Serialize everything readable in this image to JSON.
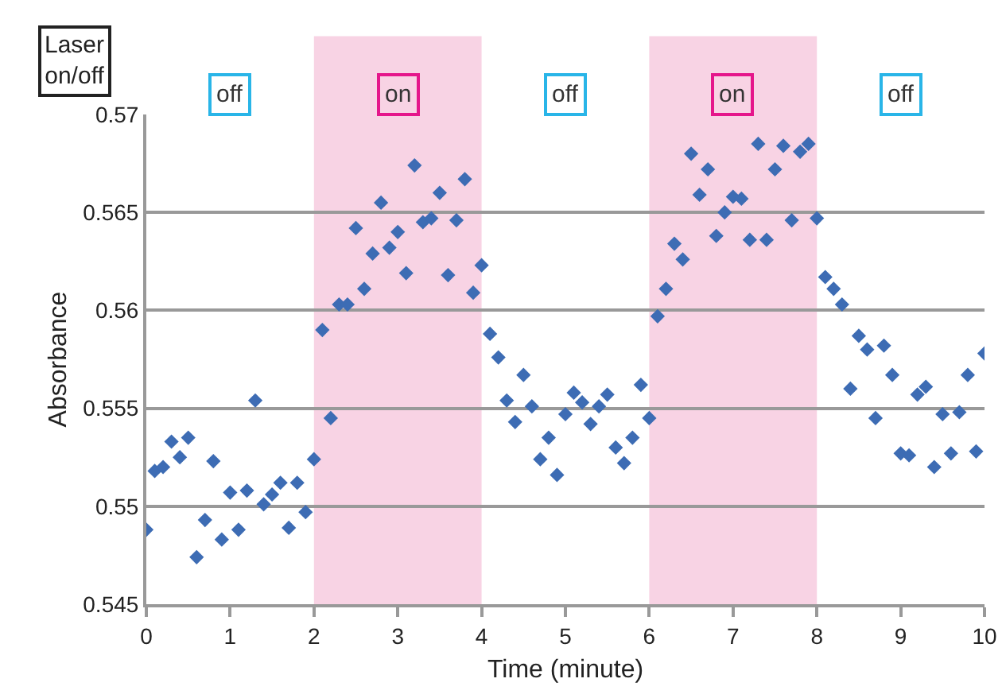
{
  "chart_data": {
    "type": "scatter",
    "xlabel": "Time (minute)",
    "ylabel": "Absorbance",
    "x": [
      0,
      0.1,
      0.2,
      0.3,
      0.4,
      0.5,
      0.6,
      0.7,
      0.8,
      0.9,
      1,
      1.1,
      1.2,
      1.3,
      1.4,
      1.5,
      1.6,
      1.7,
      1.8,
      1.9,
      2,
      2.1,
      2.2,
      2.3,
      2.4,
      2.5,
      2.6,
      2.7,
      2.8,
      2.9,
      3,
      3.1,
      3.2,
      3.3,
      3.4,
      3.5,
      3.6,
      3.7,
      3.8,
      3.9,
      4,
      4.1,
      4.2,
      4.3,
      4.4,
      4.5,
      4.6,
      4.7,
      4.8,
      4.9,
      5,
      5.1,
      5.2,
      5.3,
      5.4,
      5.5,
      5.6,
      5.7,
      5.8,
      5.9,
      6,
      6.1,
      6.2,
      6.3,
      6.4,
      6.5,
      6.6,
      6.7,
      6.8,
      6.9,
      7,
      7.1,
      7.2,
      7.3,
      7.4,
      7.5,
      7.6,
      7.7,
      7.8,
      7.9,
      8,
      8.1,
      8.2,
      8.3,
      8.4,
      8.5,
      8.6,
      8.7,
      8.8,
      8.9,
      9,
      9.1,
      9.2,
      9.3,
      9.4,
      9.5,
      9.6,
      9.7,
      9.8,
      9.9,
      10
    ],
    "series": [
      {
        "color": "#3d6cb4",
        "values": [
          0.5488,
          0.5518,
          0.552,
          0.5533,
          0.5525,
          0.5535,
          0.5474,
          0.5493,
          0.5523,
          0.5483,
          0.5507,
          0.5488,
          0.5508,
          0.5554,
          0.5501,
          0.5506,
          0.5512,
          0.5489,
          0.5512,
          0.5497,
          0.5524,
          0.559,
          0.5545,
          0.5603,
          0.5603,
          0.5642,
          0.5611,
          0.5629,
          0.5655,
          0.5632,
          0.564,
          0.5619,
          0.5674,
          0.5645,
          0.5647,
          0.566,
          0.5618,
          0.5646,
          0.5667,
          0.5609,
          0.5623,
          0.5588,
          0.5576,
          0.5554,
          0.5543,
          0.5567,
          0.5551,
          0.5524,
          0.5535,
          0.5516,
          0.5547,
          0.5558,
          0.5553,
          0.5542,
          0.5551,
          0.5557,
          0.553,
          0.5522,
          0.5535,
          0.5562,
          0.5545,
          0.5597,
          0.5611,
          0.5634,
          0.5626,
          0.568,
          0.5659,
          0.5672,
          0.5638,
          0.565,
          0.5658,
          0.5657,
          0.5636,
          0.5685,
          0.5636,
          0.5672,
          0.5684,
          0.5646,
          0.5681,
          0.5685,
          0.5647,
          0.5617,
          0.5611,
          0.5603,
          0.556,
          0.5587,
          0.558,
          0.5545,
          0.5582,
          0.5567,
          0.5527,
          0.5526,
          0.5557,
          0.5561,
          0.552,
          0.5547,
          0.5527,
          0.5548,
          0.5567,
          0.5528,
          0.5578
        ]
      }
    ],
    "xlim": [
      0,
      10
    ],
    "xticks": [
      0,
      1,
      2,
      3,
      4,
      5,
      6,
      7,
      8,
      9,
      10
    ],
    "ylim": [
      0.545,
      0.57
    ],
    "yticks": [
      0.545,
      0.55,
      0.555,
      0.56,
      0.565,
      0.57
    ],
    "grid": "y",
    "marker": "diamond",
    "bands": [
      {
        "axis": "x",
        "from": 2,
        "to": 4,
        "label": "on",
        "color": "#f8d3e4"
      },
      {
        "axis": "x",
        "from": 6,
        "to": 8,
        "label": "on",
        "color": "#f8d3e4"
      }
    ],
    "annotations": [
      "Laser on/off",
      {
        "text": "off",
        "x": 1
      },
      {
        "text": "off",
        "x": 5
      },
      {
        "text": "off",
        "x": 9
      }
    ]
  }
}
